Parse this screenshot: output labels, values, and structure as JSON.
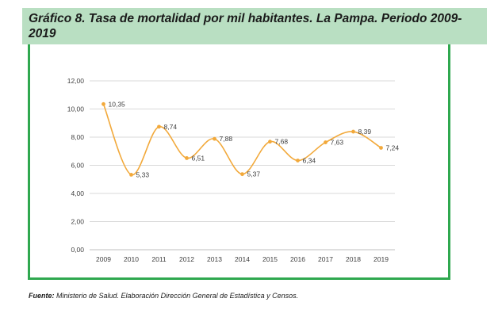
{
  "header": {
    "title": "Gráfico 8. Tasa de mortalidad por mil habitantes. La Pampa. Periodo 2009-2019"
  },
  "footer": {
    "source_label": "Fuente:",
    "source_text": " Ministerio de Salud. Elaboración Dirección General de Estadística y Censos."
  },
  "colors": {
    "title_band": "#b9dfc2",
    "frame": "#2fa84f",
    "series": "#f2a93b",
    "grid": "#d9d9d9"
  },
  "chart_data": {
    "type": "line",
    "smooth": true,
    "categories": [
      "2009",
      "2010",
      "2011",
      "2012",
      "2013",
      "2014",
      "2015",
      "2016",
      "2017",
      "2018",
      "2019"
    ],
    "series": [
      {
        "values": [
          10.35,
          5.33,
          8.74,
          6.51,
          7.88,
          5.37,
          7.68,
          6.34,
          7.63,
          8.39,
          7.24
        ],
        "labels": [
          "10,35",
          "5,33",
          "8,74",
          "6,51",
          "7,88",
          "5,37",
          "7,68",
          "6,34",
          "7,63",
          "8,39",
          "7,24"
        ]
      }
    ],
    "yticks": [
      "0,00",
      "2,00",
      "4,00",
      "6,00",
      "8,00",
      "10,00",
      "12,00"
    ],
    "ylim": [
      0,
      12
    ],
    "grid": true,
    "legend": "none"
  }
}
